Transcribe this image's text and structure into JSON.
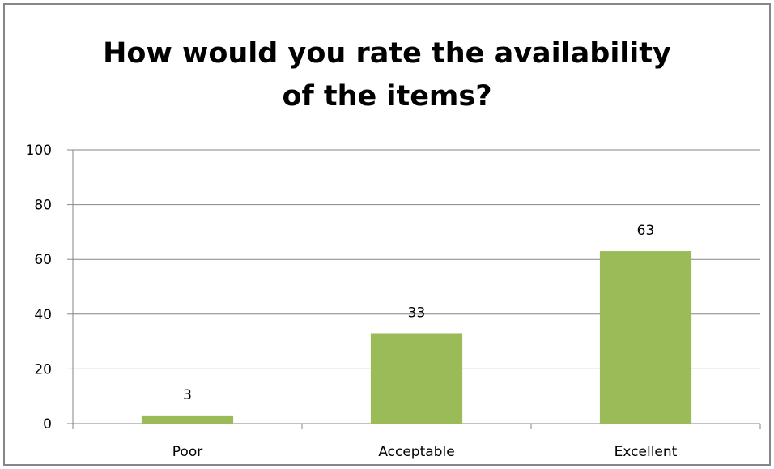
{
  "chart_data": {
    "type": "bar",
    "title_lines": [
      "How would you rate the availability",
      "of the items?"
    ],
    "categories": [
      "Poor",
      "Acceptable",
      "Excellent"
    ],
    "values": [
      3,
      33,
      63
    ],
    "data_labels": [
      "3",
      "33",
      "63"
    ],
    "ylim": [
      0,
      100
    ],
    "yticks": [
      0,
      20,
      40,
      60,
      80,
      100
    ],
    "xlabel": "",
    "ylabel": "",
    "grid": true,
    "legend": "none",
    "colors": {
      "bar": "#9BBB59",
      "grid": "#868686",
      "axis": "#868686"
    }
  }
}
